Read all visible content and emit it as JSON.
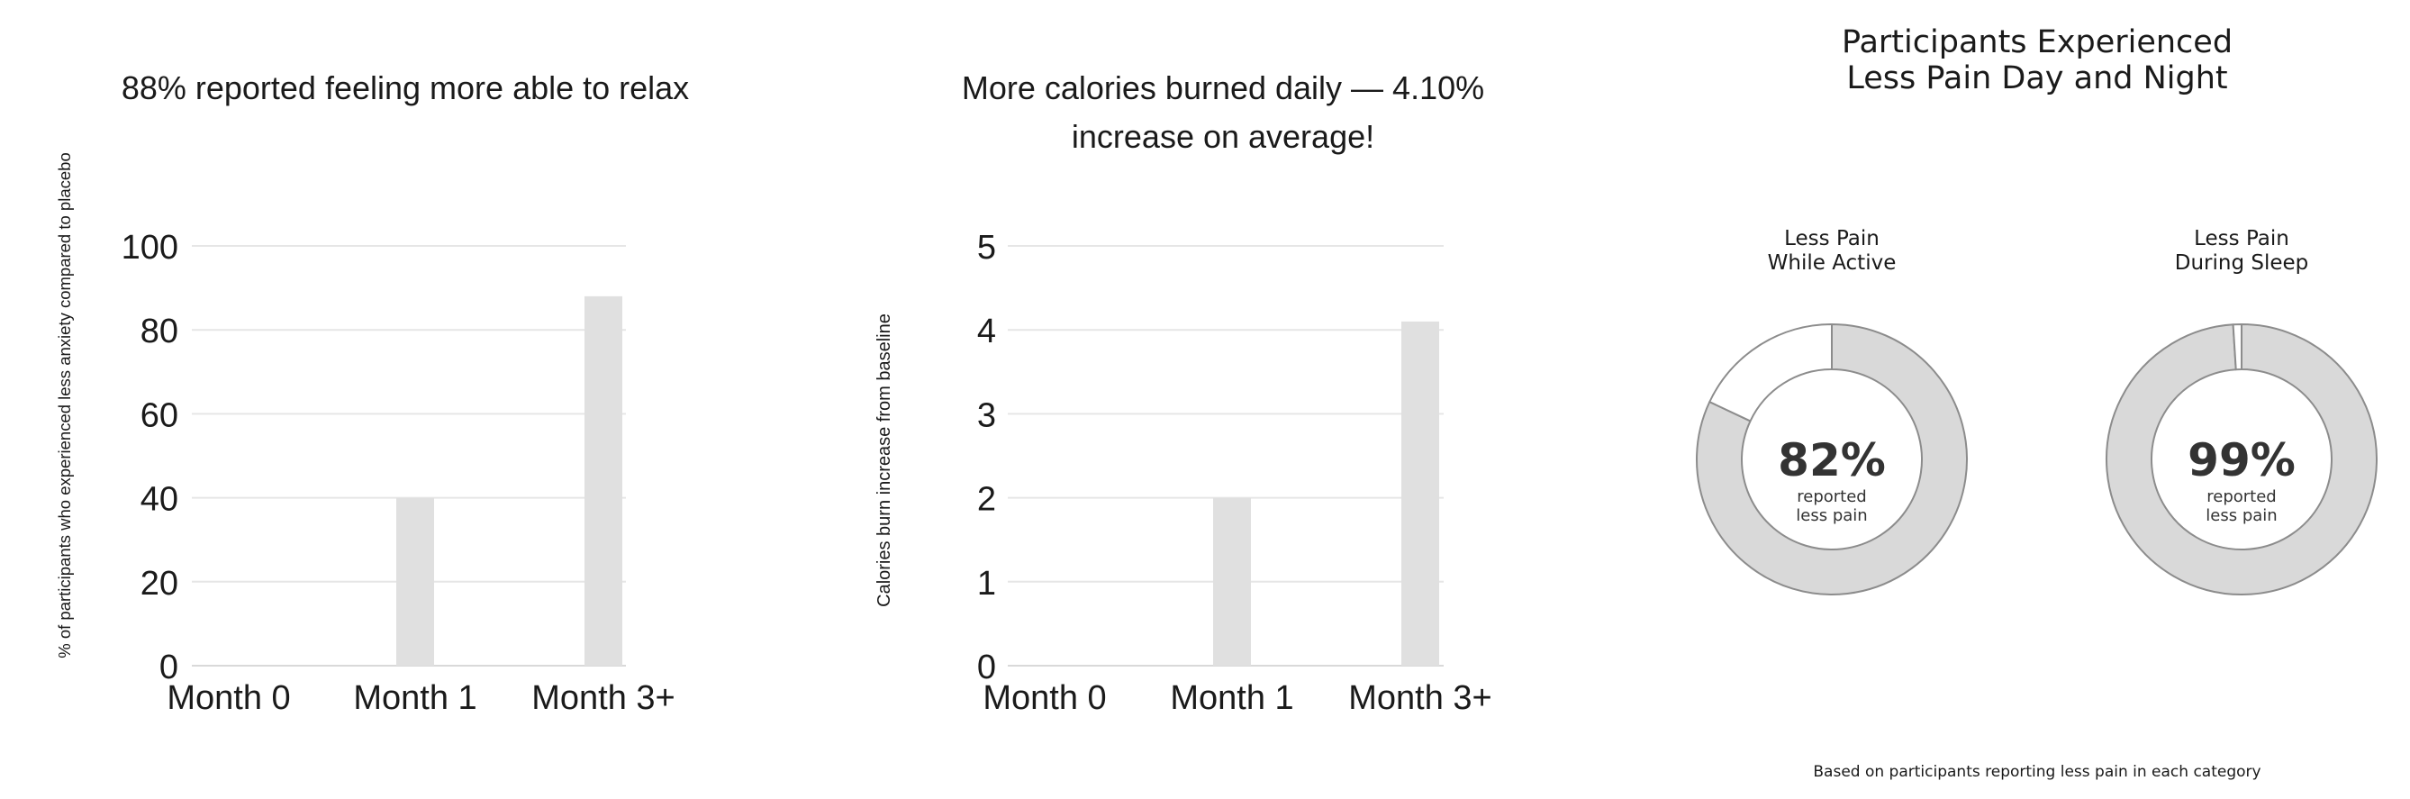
{
  "chart_data": [
    {
      "type": "bar",
      "title": "88% reported feeling more able to relax",
      "xlabel": "",
      "ylabel": "% of participants who experienced less anxiety compared to placebo",
      "categories": [
        "Month 0",
        "Month 1",
        "Month 3+"
      ],
      "values": [
        0,
        40,
        88
      ],
      "ylim": [
        0,
        100
      ],
      "yticks": [
        "0",
        "20",
        "40",
        "60",
        "80",
        "100"
      ],
      "grid": true,
      "bar_color": "#e0e0e0"
    },
    {
      "type": "bar",
      "title": "More calories burned daily — 4.10% increase on average!",
      "title_lines": [
        "More calories burned daily — 4.10%",
        "increase on average!"
      ],
      "xlabel": "",
      "ylabel": "Calories burn increase from baseline",
      "categories": [
        "Month 0",
        "Month 1",
        "Month 3+"
      ],
      "values": [
        0,
        2,
        4.1
      ],
      "ylim": [
        0,
        5
      ],
      "yticks": [
        "0",
        "1",
        "2",
        "3",
        "4",
        "5"
      ],
      "grid": true,
      "bar_color": "#e0e0e0"
    },
    {
      "type": "pie",
      "title": "Participants Experienced Less Pain Day and Night",
      "title_lines": [
        "Participants Experienced",
        "Less Pain Day and Night"
      ],
      "footnote": "Based on participants reporting less pain in each category",
      "donuts": [
        {
          "label_lines": [
            "Less Pain",
            "While Active"
          ],
          "percent": 82,
          "value_text": "82%",
          "sub_lines": [
            "reported",
            "less pain"
          ]
        },
        {
          "label_lines": [
            "Less Pain",
            "During Sleep"
          ],
          "percent": 99,
          "value_text": "99%",
          "sub_lines": [
            "reported",
            "less pain"
          ]
        }
      ],
      "fill_color": "#d9d9d9",
      "remainder_color": "#ffffff",
      "stroke_color": "#8c8c8c"
    }
  ],
  "colors": {
    "text": "#1a1a1a",
    "grid": "#e6e6e6",
    "center_text": "#333333"
  }
}
